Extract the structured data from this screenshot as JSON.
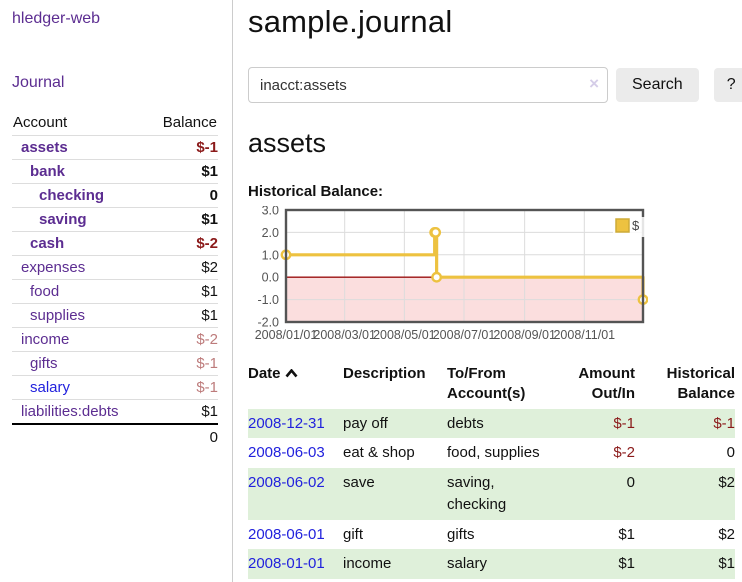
{
  "app": {
    "brand": "hledger-web",
    "nav_journal": "Journal"
  },
  "sidebar": {
    "header": {
      "account": "Account",
      "balance": "Balance"
    },
    "accounts": [
      {
        "name": "assets",
        "depth": 1,
        "bold": true,
        "balance": "$-1",
        "balance_style": "neg-strong"
      },
      {
        "name": "bank",
        "depth": 2,
        "bold": true,
        "balance": "$1",
        "balance_style": "pos"
      },
      {
        "name": "checking",
        "depth": 3,
        "bold": true,
        "balance": "0",
        "balance_style": "pos"
      },
      {
        "name": "saving",
        "depth": 3,
        "bold": true,
        "balance": "$1",
        "balance_style": "pos"
      },
      {
        "name": "cash",
        "depth": 2,
        "bold": true,
        "balance": "$-2",
        "balance_style": "neg-strong"
      },
      {
        "name": "expenses",
        "depth": 1,
        "bold": false,
        "balance": "$2",
        "balance_style": "pos"
      },
      {
        "name": "food",
        "depth": 2,
        "bold": false,
        "balance": "$1",
        "balance_style": "pos"
      },
      {
        "name": "supplies",
        "depth": 2,
        "bold": false,
        "balance": "$1",
        "balance_style": "pos"
      },
      {
        "name": "income",
        "depth": 1,
        "bold": false,
        "balance": "$-2",
        "balance_style": "neg-muted"
      },
      {
        "name": "gifts",
        "depth": 2,
        "bold": false,
        "balance": "$-1",
        "balance_style": "neg-muted"
      },
      {
        "name": "salary",
        "depth": 2,
        "bold": false,
        "link_color": "blue",
        "balance": "$-1",
        "balance_style": "neg-muted"
      },
      {
        "name": "liabilities:debts",
        "depth": 1,
        "bold": false,
        "balance": "$1",
        "balance_style": "pos"
      }
    ],
    "total": "0"
  },
  "header": {
    "title": "sample.journal"
  },
  "search": {
    "value": "inacct:assets",
    "clear_label": "×",
    "button_label": "Search",
    "help_label": "?"
  },
  "account_page": {
    "heading": "assets",
    "chart_label": "Historical Balance:"
  },
  "chart_data": {
    "type": "line",
    "step": true,
    "title": "Historical Balance",
    "series": [
      {
        "name": "$",
        "color": "#edc240",
        "points": [
          [
            "2008-01-01",
            1
          ],
          [
            "2008-06-01",
            2
          ],
          [
            "2008-06-02",
            2
          ],
          [
            "2008-06-03",
            0
          ],
          [
            "2008-12-31",
            -1
          ]
        ]
      }
    ],
    "xlim": [
      "2008-01-01",
      "2008-12-31"
    ],
    "ylim": [
      -2,
      3
    ],
    "y_ticks": [
      3,
      2,
      1,
      0,
      -1,
      -2
    ],
    "x_ticks": [
      {
        "label": "2008/01/01",
        "date": "2008-01-01"
      },
      {
        "label": "2008/03/01",
        "date": "2008-03-01"
      },
      {
        "label": "2008/05/01",
        "date": "2008-05-01"
      },
      {
        "label": "2008/07/01",
        "date": "2008-07-01"
      },
      {
        "label": "2008/09/01",
        "date": "2008-09-01"
      },
      {
        "label": "2008/11/01",
        "date": "2008-11-01"
      }
    ],
    "grid": true,
    "negative_region_color": "#fbdede",
    "zero_line_color": "#9c1010",
    "border_color": "#545454",
    "legend": {
      "label": "$",
      "position": "top-right"
    }
  },
  "register": {
    "columns": [
      "Date",
      "Description",
      "To/From Account(s)",
      "Amount Out/In",
      "Historical Balance"
    ],
    "rows": [
      {
        "date": "2008-12-31",
        "description": "pay off",
        "accounts": "debts",
        "amount": "$-1",
        "amount_neg": true,
        "balance": "$-1",
        "balance_neg": true
      },
      {
        "date": "2008-06-03",
        "description": "eat & shop",
        "accounts": "food, supplies",
        "amount": "$-2",
        "amount_neg": true,
        "balance": "0",
        "balance_neg": false
      },
      {
        "date": "2008-06-02",
        "description": "save",
        "accounts": "saving, checking",
        "amount": "0",
        "amount_neg": false,
        "balance": "$2",
        "balance_neg": false
      },
      {
        "date": "2008-06-01",
        "description": "gift",
        "accounts": "gifts",
        "amount": "$1",
        "amount_neg": false,
        "balance": "$2",
        "balance_neg": false
      },
      {
        "date": "2008-01-01",
        "description": "income",
        "accounts": "salary",
        "amount": "$1",
        "amount_neg": false,
        "balance": "$1",
        "balance_neg": false
      }
    ]
  }
}
